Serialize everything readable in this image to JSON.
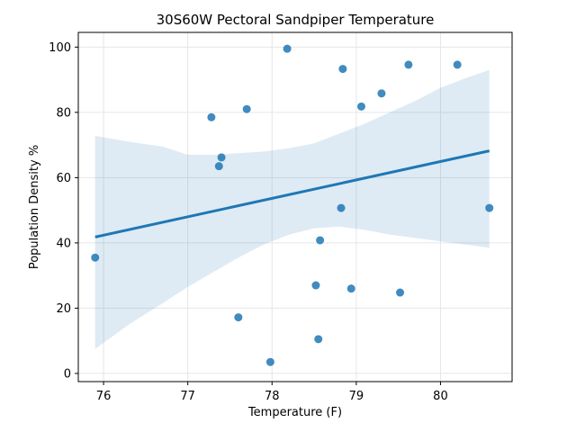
{
  "chart_data": {
    "type": "scatter",
    "title": "30S60W Pectoral Sandpiper Temperature",
    "xlabel": "Temperature (F)",
    "ylabel": "Population Density %",
    "xlim": [
      75.7,
      80.85
    ],
    "ylim": [
      -2.5,
      104.5
    ],
    "xticks": [
      76,
      77,
      78,
      79,
      80
    ],
    "yticks": [
      0,
      20,
      40,
      60,
      80,
      100
    ],
    "grid": true,
    "colors": {
      "points": "#1f77b4",
      "line": "#1f77b4",
      "band": "#1f77b4"
    },
    "points": [
      {
        "x": 75.9,
        "y": 35.5
      },
      {
        "x": 77.28,
        "y": 78.5
      },
      {
        "x": 77.37,
        "y": 63.5
      },
      {
        "x": 77.4,
        "y": 66.2
      },
      {
        "x": 77.6,
        "y": 17.2
      },
      {
        "x": 77.7,
        "y": 81.0
      },
      {
        "x": 77.98,
        "y": 3.5
      },
      {
        "x": 78.18,
        "y": 99.5
      },
      {
        "x": 78.52,
        "y": 27.0
      },
      {
        "x": 78.55,
        "y": 10.5
      },
      {
        "x": 78.57,
        "y": 40.8
      },
      {
        "x": 78.82,
        "y": 50.7
      },
      {
        "x": 78.84,
        "y": 93.3
      },
      {
        "x": 78.94,
        "y": 26.0
      },
      {
        "x": 79.06,
        "y": 81.8
      },
      {
        "x": 79.3,
        "y": 85.8
      },
      {
        "x": 79.52,
        "y": 24.8
      },
      {
        "x": 79.62,
        "y": 94.6
      },
      {
        "x": 80.2,
        "y": 94.6
      },
      {
        "x": 80.58,
        "y": 50.7
      }
    ],
    "regression": {
      "x": [
        75.9,
        80.58
      ],
      "y": [
        41.8,
        68.2
      ]
    },
    "confidence_band": {
      "x": [
        75.9,
        76.3,
        76.7,
        77.0,
        77.3,
        77.6,
        77.9,
        78.2,
        78.5,
        78.8,
        79.1,
        79.4,
        79.7,
        80.0,
        80.3,
        80.58
      ],
      "upper": [
        72.8,
        71.0,
        69.5,
        67.0,
        67.0,
        67.5,
        68.0,
        69.0,
        70.5,
        73.5,
        76.5,
        80.0,
        83.5,
        87.5,
        90.5,
        93.0
      ],
      "lower": [
        7.5,
        15.0,
        21.5,
        26.5,
        31.0,
        35.5,
        39.5,
        42.5,
        44.5,
        45.0,
        44.0,
        42.5,
        41.5,
        40.5,
        39.5,
        38.5
      ]
    }
  }
}
